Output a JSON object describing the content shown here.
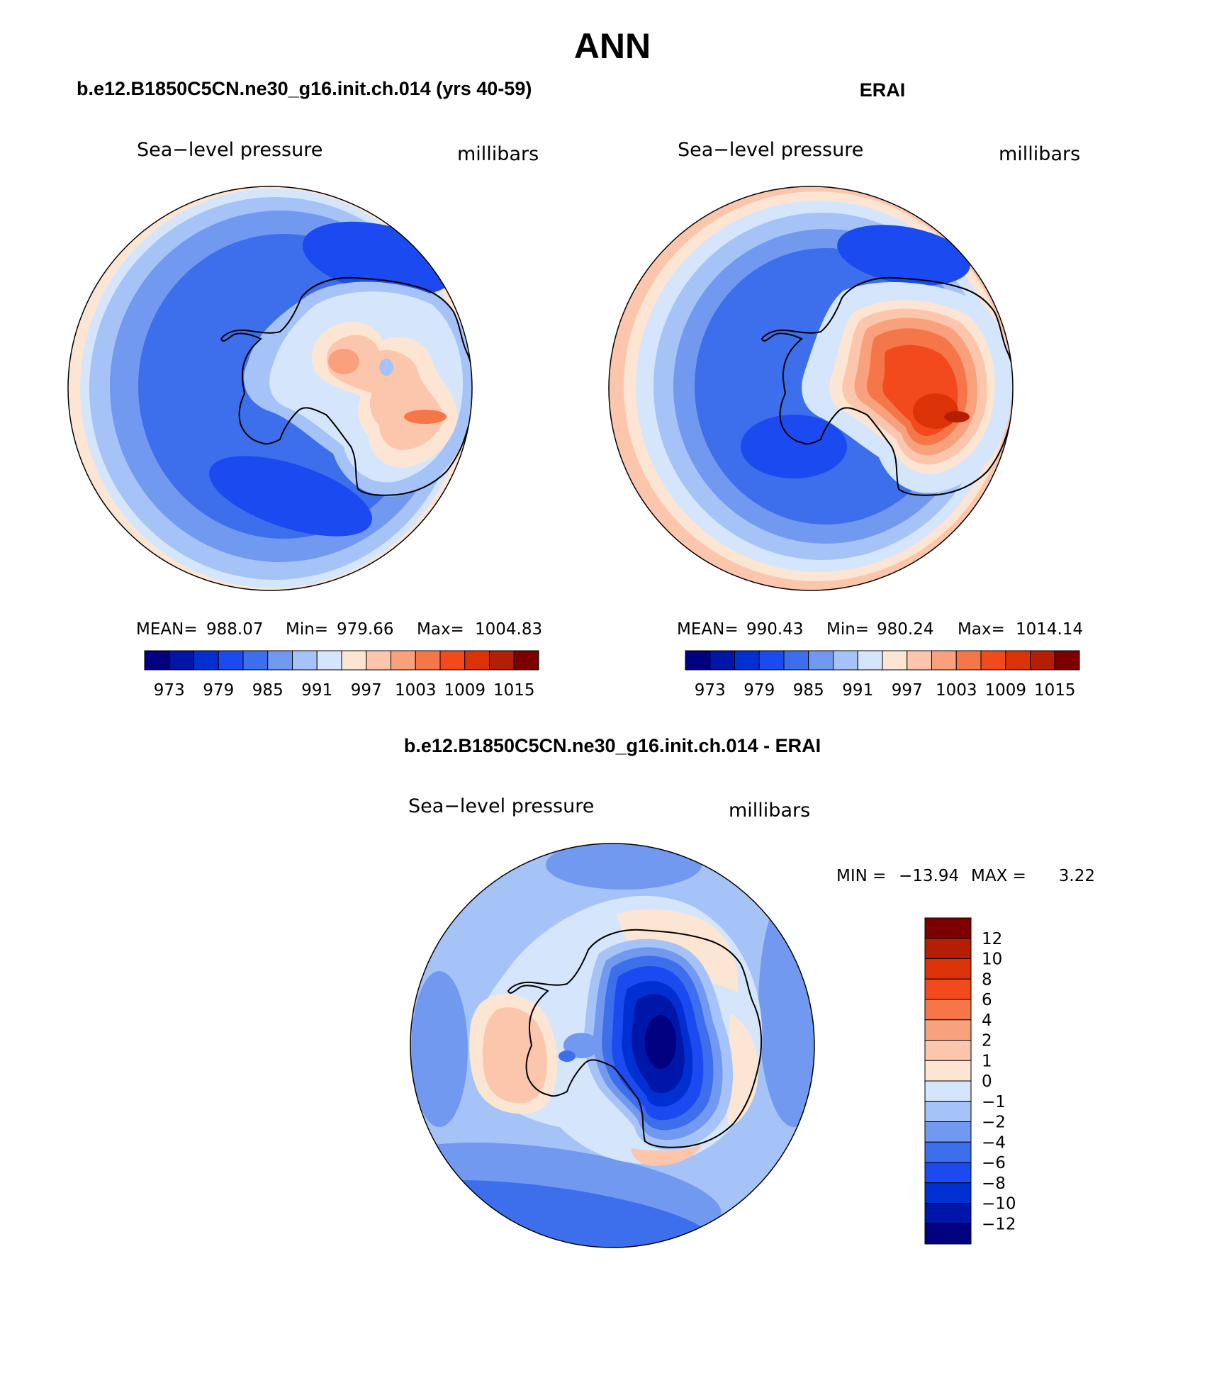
{
  "figure": {
    "title": "ANN"
  },
  "colors": {
    "bias_scale": [
      "#000080",
      "#0016a8",
      "#0030d2",
      "#1a4af0",
      "#3d6eec",
      "#7299f0",
      "#a6c3f8",
      "#d5e6fc",
      "#fde5d3",
      "#fcc6ac",
      "#f9a07c",
      "#f57649",
      "#f24a1d",
      "#dc3208",
      "#b41f04",
      "#7d0000"
    ],
    "diff_scale": [
      "#000080",
      "#0016a8",
      "#0030d2",
      "#1a4af0",
      "#3d6eec",
      "#7299f0",
      "#a6c3f8",
      "#d5e6fc",
      "#fde5d3",
      "#fcc6ac",
      "#f9a07c",
      "#f57649",
      "#f24a1d",
      "#dc3208",
      "#b41f04",
      "#7d0000"
    ],
    "coastline": "#000000"
  },
  "chart_data": [
    {
      "type": "heatmap",
      "panel": "model",
      "heading": "b.e12.B1850C5CN.ne30_g16.init.ch.014 (yrs 40-59)",
      "left_label": "Sea−level pressure",
      "right_label": "millibars",
      "stats": {
        "mean_label": "MEAN=",
        "mean": "988.07",
        "min_label": "Min=",
        "min": "979.66",
        "max_label": "Max=",
        "max": "1004.83"
      },
      "colorbar_ticks": [
        "973",
        "979",
        "985",
        "991",
        "997",
        "1003",
        "1009",
        "1015"
      ]
    },
    {
      "type": "heatmap",
      "panel": "obs",
      "heading": "ERAI",
      "left_label": "Sea−level pressure",
      "right_label": "millibars",
      "stats": {
        "mean_label": "MEAN=",
        "mean": "990.43",
        "min_label": "Min=",
        "min": "980.24",
        "max_label": "Max=",
        "max": "1014.14"
      },
      "colorbar_ticks": [
        "973",
        "979",
        "985",
        "991",
        "997",
        "1003",
        "1009",
        "1015"
      ]
    },
    {
      "type": "heatmap",
      "panel": "difference",
      "heading": "b.e12.B1850C5CN.ne30_g16.init.ch.014 - ERAI",
      "left_label": "Sea−level pressure",
      "right_label": "millibars",
      "stats": {
        "min_label": "MIN =",
        "min": "−13.94",
        "max_label": "MAX =",
        "max": "3.22"
      },
      "colorbar_ticks": [
        "12",
        "10",
        "8",
        "6",
        "4",
        "2",
        "1",
        "0",
        "−1",
        "−2",
        "−4",
        "−6",
        "−8",
        "−10",
        "−12"
      ]
    }
  ]
}
